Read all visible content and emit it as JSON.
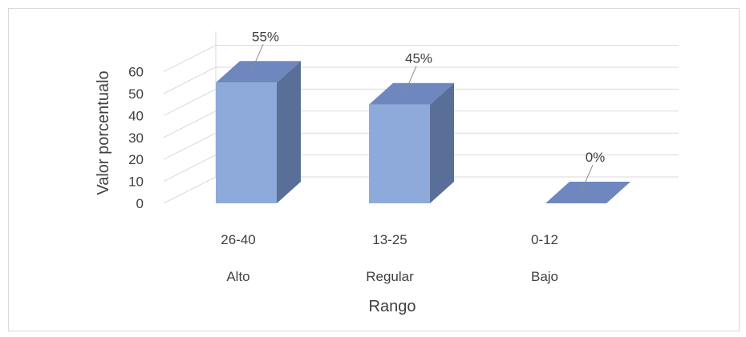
{
  "chart_data": {
    "type": "bar",
    "categories": [
      "26-40",
      "13-25",
      "0-12"
    ],
    "category_groups": [
      "Alto",
      "Regular",
      "Bajo"
    ],
    "values": [
      55,
      45,
      0
    ],
    "data_labels": [
      "55%",
      "45%",
      "0%"
    ],
    "ylabel": "Valor porcentualo",
    "xlabel": "Rango",
    "ylim": [
      0,
      60
    ],
    "yticks": [
      "0",
      "10",
      "20",
      "30",
      "40",
      "50",
      "60"
    ],
    "grid": true,
    "legend": "none",
    "colors": {
      "front": "#8eaadb",
      "top": "#6e87bf",
      "side": "#5a6f98",
      "grid": "#d9d9d9",
      "text": "#404040"
    }
  }
}
